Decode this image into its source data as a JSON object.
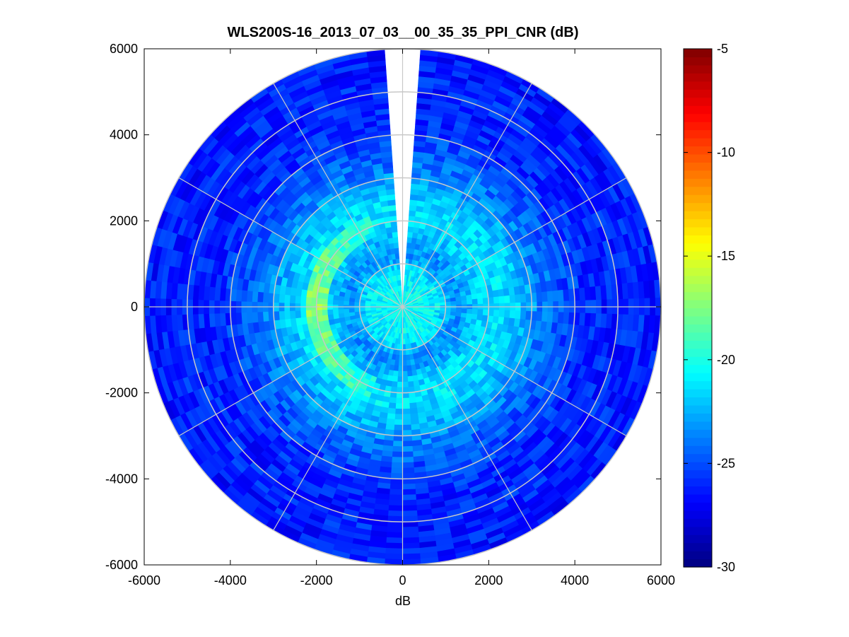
{
  "figure": {
    "title": "WLS200S-16_2013_07_03__00_35_35_PPI_CNR (dB)",
    "xlabel": "dB"
  },
  "chart_data": {
    "type": "heatmap",
    "projection": "polar",
    "title": "WLS200S-16_2013_07_03__00_35_35_PPI_CNR (dB)",
    "xlabel": "dB",
    "ylabel": "",
    "xlim": [
      -6000,
      6000
    ],
    "ylim": [
      -6000,
      6000
    ],
    "xticks": [
      -6000,
      -4000,
      -2000,
      0,
      2000,
      4000,
      6000
    ],
    "yticks": [
      -6000,
      -4000,
      -2000,
      0,
      2000,
      4000,
      6000
    ],
    "grid": true,
    "grid_rings": [
      1000,
      2000,
      3000,
      4000,
      5000,
      6000
    ],
    "grid_spokes_deg": [
      0,
      30,
      60,
      90,
      120,
      150,
      180,
      210,
      240,
      270,
      300,
      330
    ],
    "max_range": 6000,
    "missing_sector_azimuth_deg": [
      -4,
      4
    ],
    "colormap": "jet",
    "colorbar": {
      "min": -30,
      "max": -5,
      "ticks": [
        -5,
        -10,
        -15,
        -20,
        -25,
        -30
      ],
      "placement": "right"
    },
    "radial_profile": {
      "range": [
        250,
        750,
        1250,
        1750,
        2250,
        2750,
        3250,
        3750,
        4250,
        4750,
        5250,
        5750
      ],
      "cnr_db": [
        -20.5,
        -20.8,
        -23.5,
        -21.8,
        -21.2,
        -22.3,
        -24.0,
        -25.0,
        -25.8,
        -26.2,
        -26.0,
        -26.3
      ]
    },
    "features": [
      {
        "description": "enhanced CNR arc",
        "azimuth_deg": [
          -160,
          -20
        ],
        "range": [
          1750,
          2250
        ],
        "cnr_db": -17
      }
    ]
  }
}
